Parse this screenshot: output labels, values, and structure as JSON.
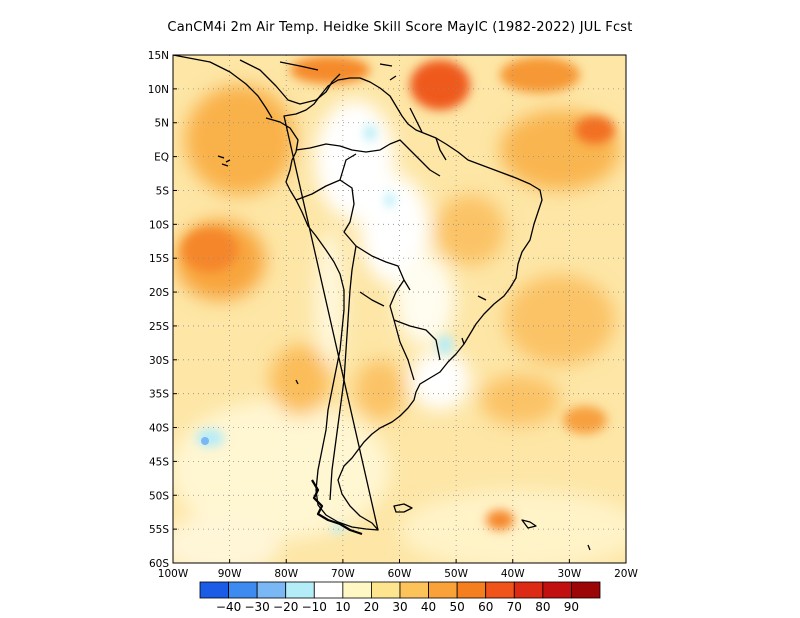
{
  "title": "CanCM4i  2m Air Temp. Heidke Skill Score MayIC (1982-2022) JUL Fcst",
  "lat_labels": [
    "15N",
    "10N",
    "5N",
    "EQ",
    "5S",
    "10S",
    "15S",
    "20S",
    "25S",
    "30S",
    "35S",
    "40S",
    "45S",
    "50S",
    "55S",
    "60S"
  ],
  "lon_labels": [
    "100W",
    "90W",
    "80W",
    "70W",
    "60W",
    "50W",
    "40W",
    "30W",
    "20W"
  ],
  "colorbar": {
    "labels": [
      "-40",
      "-30",
      "-20",
      "-10",
      "10",
      "20",
      "30",
      "40",
      "50",
      "60",
      "70",
      "80",
      "90"
    ],
    "colors": [
      "#1a5ce6",
      "#3d8af0",
      "#7ab8f5",
      "#b4ecf8",
      "#ffffff",
      "#fff8c4",
      "#fde48e",
      "#fbc35a",
      "#f9a23a",
      "#f57f1e",
      "#f0541a",
      "#dc2a14",
      "#c21010",
      "#9c0606"
    ]
  },
  "map": {
    "region": "South America",
    "extent": {
      "lon": [
        -100,
        -20
      ],
      "lat": [
        -60,
        15
      ]
    },
    "grid": "dotted",
    "background_color": "#fde6a6",
    "coastline_color": "#000000"
  }
}
